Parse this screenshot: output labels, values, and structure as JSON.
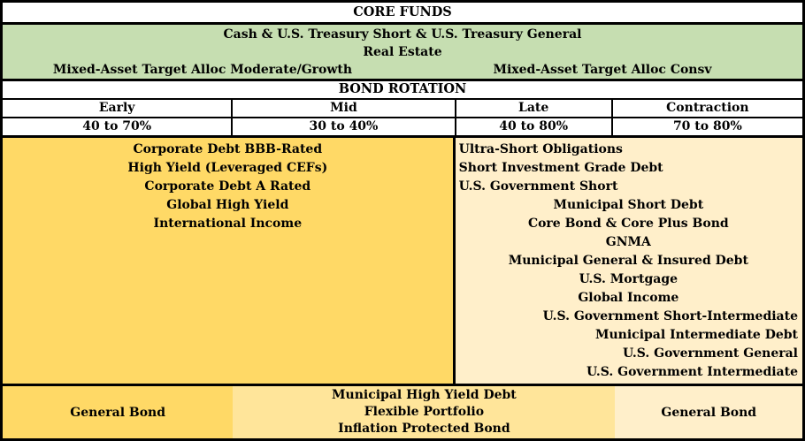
{
  "colors": {
    "green": "#c6deb1",
    "gold": "#ffd966",
    "light_gold": "#ffe59a",
    "cream": "#ffefca",
    "border": "#000000"
  },
  "core_funds": {
    "title": "CORE FUNDS",
    "row1": "Cash & U.S. Treasury Short & U.S. Treasury General",
    "row2": "Real Estate",
    "row3_left": "Mixed-Asset Target Alloc Moderate/Growth",
    "row3_right": "Mixed-Asset Target Alloc Consv"
  },
  "bond_rotation": {
    "title": "BOND ROTATION",
    "phases": [
      {
        "label": "Early",
        "allocation": "40 to 70%"
      },
      {
        "label": "Mid",
        "allocation": "30 to 40%"
      },
      {
        "label": "Late",
        "allocation": "40 to 80%"
      },
      {
        "label": "Contraction",
        "allocation": "70 to 80%"
      }
    ]
  },
  "early_mid_panel": {
    "items": [
      "Corporate Debt BBB-Rated",
      "High Yield (Leveraged CEFs)",
      "Corporate Debt A Rated",
      "Global High Yield",
      "International Income"
    ]
  },
  "late_contraction_panel": {
    "left_aligned_items": [
      "Ultra-Short Obligations",
      "Short Investment Grade Debt",
      "U.S. Government Short"
    ],
    "center_aligned_items": [
      "Municipal Short Debt",
      "Core Bond & Core Plus Bond",
      "GNMA",
      "Municipal General & Insured Debt",
      "U.S. Mortgage",
      "Global Income"
    ],
    "right_aligned_items": [
      "U.S. Government Short-Intermediate",
      "Municipal Intermediate Debt",
      "U.S. Government General",
      "U.S. Government Intermediate"
    ]
  },
  "bottom_row": {
    "left_cell": "General Bond",
    "middle_cell_items": [
      "Municipal High Yield Debt",
      "Flexible Portfolio",
      "Inflation Protected Bond"
    ],
    "right_cell": "General Bond"
  }
}
